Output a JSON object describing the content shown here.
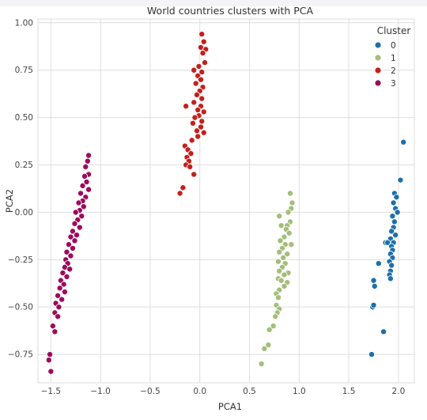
{
  "chart_data": {
    "type": "scatter",
    "title": "World countries clusters with PCA",
    "xlabel": "PCA1",
    "ylabel": "PCA2",
    "xlim": [
      -1.63,
      2.16
    ],
    "ylim": [
      -0.9,
      1.02
    ],
    "xticks": [
      -1.5,
      -1.0,
      -0.5,
      0.0,
      0.5,
      1.0,
      1.5,
      2.0
    ],
    "xtick_labels": [
      "−1.5",
      "−1.0",
      "−0.5",
      "0.0",
      "0.5",
      "1.0",
      "1.5",
      "2.0"
    ],
    "yticks": [
      -0.75,
      -0.5,
      -0.25,
      0.0,
      0.25,
      0.5,
      0.75,
      1.0
    ],
    "ytick_labels": [
      "−0.75",
      "−0.50",
      "−0.25",
      "0.00",
      "0.25",
      "0.50",
      "0.75",
      "1.00"
    ],
    "grid": true,
    "legend": {
      "title": "Cluster",
      "placement": "top-right",
      "entries": [
        "0",
        "1",
        "2",
        "3"
      ]
    },
    "series": [
      {
        "name": "0",
        "color": "#1f6fa8",
        "points": [
          [
            2.05,
            0.37
          ],
          [
            2.02,
            0.17
          ],
          [
            1.96,
            0.1
          ],
          [
            1.98,
            0.08
          ],
          [
            1.95,
            0.05
          ],
          [
            1.97,
            0.02
          ],
          [
            1.99,
            0
          ],
          [
            1.94,
            -0.02
          ],
          [
            1.96,
            -0.05
          ],
          [
            1.95,
            -0.08
          ],
          [
            1.93,
            -0.1
          ],
          [
            1.97,
            -0.12
          ],
          [
            1.92,
            -0.14
          ],
          [
            1.95,
            -0.16
          ],
          [
            1.87,
            -0.16
          ],
          [
            1.89,
            -0.16
          ],
          [
            1.93,
            -0.18
          ],
          [
            1.94,
            -0.2
          ],
          [
            1.92,
            -0.22
          ],
          [
            1.94,
            -0.24
          ],
          [
            1.91,
            -0.26
          ],
          [
            1.93,
            -0.28
          ],
          [
            1.8,
            -0.27
          ],
          [
            1.92,
            -0.31
          ],
          [
            1.91,
            -0.33
          ],
          [
            1.92,
            -0.35
          ],
          [
            1.75,
            -0.36
          ],
          [
            1.76,
            -0.39
          ],
          [
            1.74,
            -0.5
          ],
          [
            1.75,
            -0.49
          ],
          [
            1.85,
            -0.63
          ],
          [
            1.73,
            -0.75
          ]
        ]
      },
      {
        "name": "1",
        "color": "#a3be7a",
        "points": [
          [
            0.91,
            0.1
          ],
          [
            0.93,
            0.05
          ],
          [
            0.92,
            0.02
          ],
          [
            0.89,
            0
          ],
          [
            0.8,
            -0.02
          ],
          [
            0.91,
            -0.05
          ],
          [
            0.88,
            -0.07
          ],
          [
            0.82,
            -0.07
          ],
          [
            0.87,
            -0.09
          ],
          [
            0.9,
            -0.11
          ],
          [
            0.85,
            -0.13
          ],
          [
            0.81,
            -0.15
          ],
          [
            0.86,
            -0.17
          ],
          [
            0.92,
            -0.17
          ],
          [
            0.83,
            -0.19
          ],
          [
            0.8,
            -0.21
          ],
          [
            0.88,
            -0.22
          ],
          [
            0.84,
            -0.24
          ],
          [
            0.79,
            -0.26
          ],
          [
            0.86,
            -0.27
          ],
          [
            0.83,
            -0.29
          ],
          [
            0.8,
            -0.31
          ],
          [
            0.89,
            -0.32
          ],
          [
            0.85,
            -0.33
          ],
          [
            0.79,
            -0.35
          ],
          [
            0.82,
            -0.36
          ],
          [
            0.88,
            -0.37
          ],
          [
            0.85,
            -0.39
          ],
          [
            0.8,
            -0.41
          ],
          [
            0.77,
            -0.43
          ],
          [
            0.79,
            -0.45
          ],
          [
            0.77,
            -0.49
          ],
          [
            0.8,
            -0.51
          ],
          [
            0.78,
            -0.53
          ],
          [
            0.76,
            -0.55
          ],
          [
            0.74,
            -0.6
          ],
          [
            0.7,
            -0.62
          ],
          [
            0.69,
            -0.7
          ],
          [
            0.65,
            -0.72
          ],
          [
            0.62,
            -0.8
          ]
        ]
      },
      {
        "name": "2",
        "color": "#c4201d",
        "points": [
          [
            0.02,
            0.94
          ],
          [
            0.04,
            0.9
          ],
          [
            0.01,
            0.87
          ],
          [
            0.06,
            0.86
          ],
          [
            0.03,
            0.84
          ],
          [
            0.05,
            0.79
          ],
          [
            -0.01,
            0.77
          ],
          [
            -0.06,
            0.75
          ],
          [
            0.02,
            0.74
          ],
          [
            -0.02,
            0.72
          ],
          [
            0.01,
            0.7
          ],
          [
            -0.04,
            0.68
          ],
          [
            0.03,
            0.66
          ],
          [
            0,
            0.64
          ],
          [
            -0.03,
            0.62
          ],
          [
            0.02,
            0.6
          ],
          [
            -0.06,
            0.58
          ],
          [
            0.01,
            0.56
          ],
          [
            -0.14,
            0.56
          ],
          [
            -0.02,
            0.54
          ],
          [
            0.04,
            0.53
          ],
          [
            -0.01,
            0.51
          ],
          [
            -0.05,
            0.5
          ],
          [
            0.02,
            0.48
          ],
          [
            -0.07,
            0.47
          ],
          [
            0.01,
            0.45
          ],
          [
            -0.03,
            0.43
          ],
          [
            0.04,
            0.42
          ],
          [
            -0.02,
            0.4
          ],
          [
            -0.08,
            0.38
          ],
          [
            -0.15,
            0.35
          ],
          [
            -0.12,
            0.33
          ],
          [
            -0.09,
            0.31
          ],
          [
            -0.13,
            0.29
          ],
          [
            -0.11,
            0.27
          ],
          [
            -0.14,
            0.25
          ],
          [
            -0.1,
            0.24
          ],
          [
            -0.06,
            0.2
          ],
          [
            -0.17,
            0.13
          ],
          [
            -0.2,
            0.1
          ]
        ]
      },
      {
        "name": "3",
        "color": "#9b0b5e",
        "points": [
          [
            -1.12,
            0.3
          ],
          [
            -1.13,
            0.27
          ],
          [
            -1.15,
            0.24
          ],
          [
            -1.12,
            0.2
          ],
          [
            -1.16,
            0.19
          ],
          [
            -1.14,
            0.16
          ],
          [
            -1.18,
            0.14
          ],
          [
            -1.12,
            0.12
          ],
          [
            -1.2,
            0.1
          ],
          [
            -1.15,
            0.08
          ],
          [
            -1.18,
            0.06
          ],
          [
            -1.22,
            0.05
          ],
          [
            -1.17,
            0.03
          ],
          [
            -1.21,
            0.01
          ],
          [
            -1.25,
            0
          ],
          [
            -1.19,
            -0.02
          ],
          [
            -1.23,
            -0.04
          ],
          [
            -1.26,
            -0.06
          ],
          [
            -1.21,
            -0.08
          ],
          [
            -1.28,
            -0.1
          ],
          [
            -1.24,
            -0.12
          ],
          [
            -1.3,
            -0.13
          ],
          [
            -1.26,
            -0.15
          ],
          [
            -1.32,
            -0.17
          ],
          [
            -1.28,
            -0.19
          ],
          [
            -1.34,
            -0.21
          ],
          [
            -1.3,
            -0.23
          ],
          [
            -1.35,
            -0.25
          ],
          [
            -1.33,
            -0.27
          ],
          [
            -1.36,
            -0.29
          ],
          [
            -1.31,
            -0.3
          ],
          [
            -1.38,
            -0.32
          ],
          [
            -1.34,
            -0.34
          ],
          [
            -1.4,
            -0.36
          ],
          [
            -1.37,
            -0.38
          ],
          [
            -1.41,
            -0.4
          ],
          [
            -1.36,
            -0.42
          ],
          [
            -1.43,
            -0.44
          ],
          [
            -1.39,
            -0.46
          ],
          [
            -1.45,
            -0.48
          ],
          [
            -1.42,
            -0.5
          ],
          [
            -1.46,
            -0.53
          ],
          [
            -1.43,
            -0.55
          ],
          [
            -1.48,
            -0.6
          ],
          [
            -1.46,
            -0.63
          ],
          [
            -1.51,
            -0.75
          ],
          [
            -1.52,
            -0.78
          ],
          [
            -1.5,
            -0.84
          ]
        ]
      }
    ]
  }
}
